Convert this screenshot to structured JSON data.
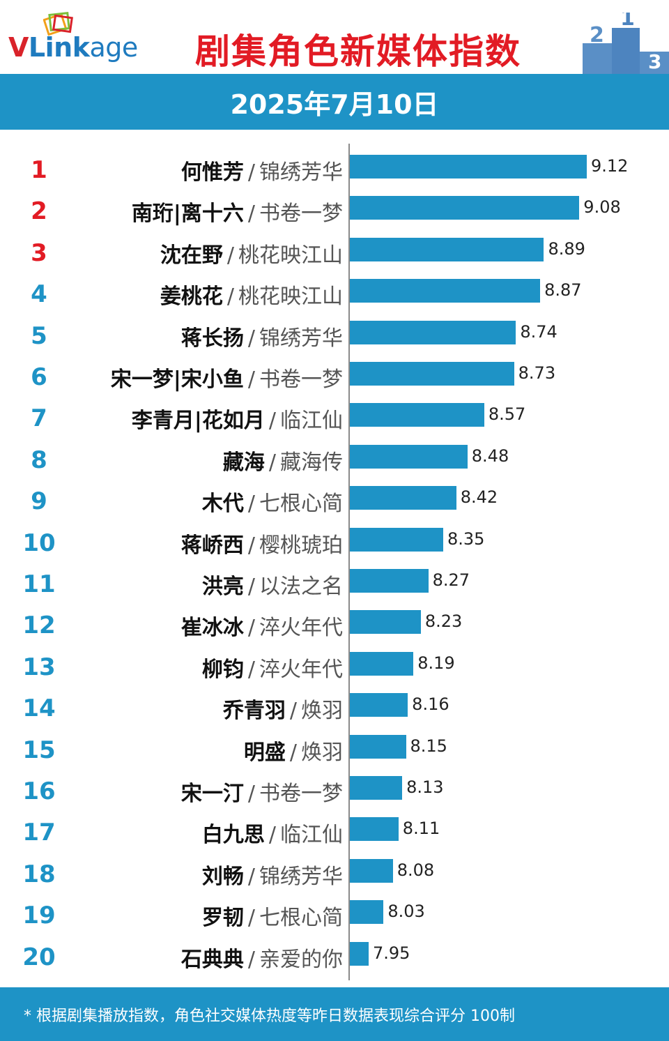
{
  "header": {
    "logo_v": "V",
    "logo_link": "Link",
    "logo_age": "age",
    "title": "剧集角色新媒体指数",
    "podium": [
      "2",
      "1",
      "3"
    ]
  },
  "date": "2025年7月10日",
  "footer": {
    "note": "* 根据剧集播放指数，角色社交媒体热度等昨日数据表现综合评分 100制"
  },
  "colors": {
    "accent": "#1e93c6",
    "title_red": "#e21b24",
    "top_rank_red": "#e21b24"
  },
  "chart_data": {
    "type": "bar",
    "orientation": "horizontal",
    "title": "剧集角色新媒体指数",
    "xlim": [
      7.6,
      9.3
    ],
    "ranks": [
      "1",
      "2",
      "3",
      "4",
      "5",
      "6",
      "7",
      "8",
      "9",
      "10",
      "11",
      "12",
      "13",
      "14",
      "15",
      "16",
      "17",
      "18",
      "19",
      "20"
    ],
    "names": [
      "何惟芳",
      "南珩|离十六",
      "沈在野",
      "姜桃花",
      "蒋长扬",
      "宋一梦|宋小鱼",
      "李青月|花如月",
      "藏海",
      "木代",
      "蒋峤西",
      "洪亮",
      "崔冰冰",
      "柳钧",
      "乔青羽",
      "明盛",
      "宋一汀",
      "白九思",
      "刘畅",
      "罗韧",
      "石典典"
    ],
    "shows": [
      "锦绣芳华",
      "书卷一梦",
      "桃花映江山",
      "桃花映江山",
      "锦绣芳华",
      "书卷一梦",
      "临江仙",
      "藏海传",
      "七根心简",
      "樱桃琥珀",
      "以法之名",
      "淬火年代",
      "淬火年代",
      "焕羽",
      "焕羽",
      "书卷一梦",
      "临江仙",
      "锦绣芳华",
      "七根心简",
      "亲爱的你"
    ],
    "values": [
      9.12,
      9.08,
      8.89,
      8.87,
      8.74,
      8.73,
      8.57,
      8.48,
      8.42,
      8.35,
      8.27,
      8.23,
      8.19,
      8.16,
      8.15,
      8.13,
      8.11,
      8.08,
      8.03,
      7.95
    ],
    "value_labels": [
      "9.12",
      "9.08",
      "8.89",
      "8.87",
      "8.74",
      "8.73",
      "8.57",
      "8.48",
      "8.42",
      "8.35",
      "8.27",
      "8.23",
      "8.19",
      "8.16",
      "8.15",
      "8.13",
      "8.11",
      "8.08",
      "8.03",
      "7.95"
    ],
    "separator": "/"
  }
}
